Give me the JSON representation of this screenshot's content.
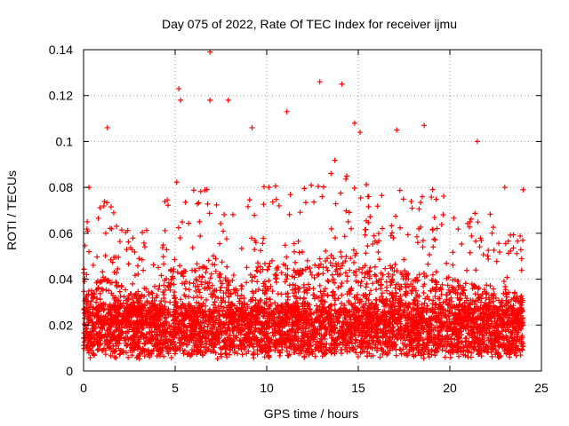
{
  "chart_data": {
    "type": "scatter",
    "title": "Day 075 of 2022, Rate Of TEC Index for receiver ijmu",
    "xlabel": "GPS time / hours",
    "ylabel": "ROTI / TECUs",
    "xlim": [
      0,
      25
    ],
    "ylim": [
      0,
      0.14
    ],
    "x_ticks": [
      "0",
      "5",
      "10",
      "15",
      "20",
      "25"
    ],
    "y_ticks": [
      "0",
      "0.02",
      "0.04",
      "0.06",
      "0.08",
      "0.1",
      "0.12",
      "0.14"
    ],
    "grid": true,
    "marker": "plus",
    "color": "#ff0000",
    "data_extent_x": [
      0,
      24
    ],
    "notable_points": [
      {
        "x": 6.9,
        "y": 0.139
      },
      {
        "x": 12.9,
        "y": 0.126
      },
      {
        "x": 14.1,
        "y": 0.125
      },
      {
        "x": 5.2,
        "y": 0.123
      },
      {
        "x": 6.9,
        "y": 0.118
      },
      {
        "x": 7.9,
        "y": 0.118
      },
      {
        "x": 5.3,
        "y": 0.118
      },
      {
        "x": 11.1,
        "y": 0.113
      },
      {
        "x": 14.8,
        "y": 0.108
      },
      {
        "x": 18.6,
        "y": 0.107
      },
      {
        "x": 21.5,
        "y": 0.1
      },
      {
        "x": 1.3,
        "y": 0.106
      },
      {
        "x": 9.2,
        "y": 0.106
      },
      {
        "x": 15.1,
        "y": 0.104
      },
      {
        "x": 17.1,
        "y": 0.105
      },
      {
        "x": 0.2,
        "y": 0.065
      },
      {
        "x": 0.3,
        "y": 0.08
      },
      {
        "x": 24.0,
        "y": 0.079
      },
      {
        "x": 23.0,
        "y": 0.08
      }
    ],
    "profile": {
      "hours": [
        0,
        1,
        2,
        3,
        4,
        5,
        6,
        7,
        8,
        9,
        10,
        11,
        12,
        13,
        14,
        15,
        16,
        17,
        18,
        19,
        20,
        21,
        22,
        23,
        24
      ],
      "envelope": [
        0.06,
        0.075,
        0.07,
        0.06,
        0.065,
        0.085,
        0.08,
        0.09,
        0.07,
        0.075,
        0.09,
        0.085,
        0.08,
        0.09,
        0.095,
        0.085,
        0.08,
        0.085,
        0.075,
        0.08,
        0.075,
        0.07,
        0.07,
        0.065,
        0.06
      ]
    }
  }
}
